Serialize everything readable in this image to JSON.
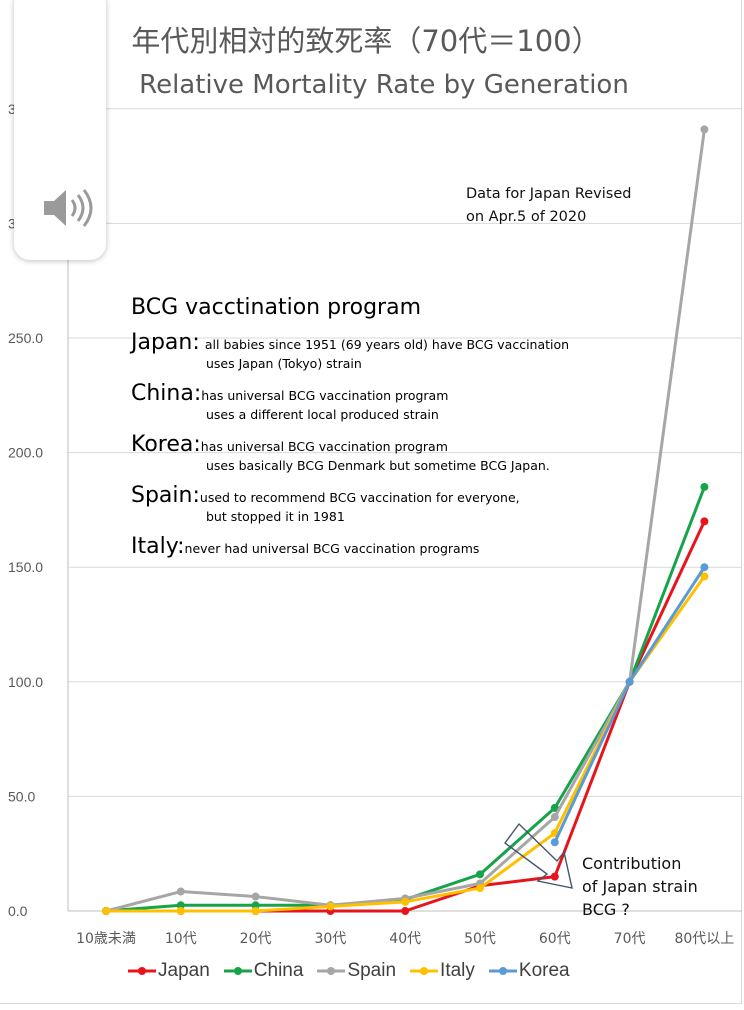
{
  "chart_data": {
    "type": "line",
    "title": "年代別相対的致死率（70代＝100）",
    "subtitle": "Relative Mortality Rate by Generation",
    "categories": [
      "10歳未満",
      "10代",
      "20代",
      "30代",
      "40代",
      "50代",
      "60代",
      "70代",
      "80代以上"
    ],
    "y_tick_labels": [
      "0.0",
      "50.0",
      "100.0",
      "150.0",
      "200.0",
      "250.0"
    ],
    "ylim": [
      0,
      350
    ],
    "grid": true,
    "legend_position": "bottom",
    "series": [
      {
        "name": "Japan",
        "color": "#e8141c",
        "values": [
          0,
          0,
          0,
          0,
          0,
          11,
          15,
          100,
          170
        ]
      },
      {
        "name": "China",
        "color": "#16a34a",
        "values": [
          0,
          2.5,
          2.5,
          2.5,
          5,
          16,
          45,
          100,
          185
        ]
      },
      {
        "name": "Spain",
        "color": "#a6a6a6",
        "values": [
          0,
          8.5,
          6.3,
          2.5,
          5.5,
          12,
          41,
          100,
          341
        ]
      },
      {
        "name": "Italy",
        "color": "#ffc000",
        "values": [
          0,
          0,
          0,
          2,
          4,
          10,
          34,
          100,
          146
        ]
      },
      {
        "name": "Korea",
        "color": "#5b9bd5",
        "values": [
          null,
          null,
          null,
          null,
          null,
          null,
          30,
          100,
          150
        ]
      }
    ],
    "annotations": {
      "revised_note": [
        "Data for Japan Revised",
        "on Apr.5 of 2020"
      ],
      "bcg_heading": "BCG  vacctination program",
      "bcg_entries": [
        {
          "country": "Japan:",
          "note": "all babies since 1951 (69 years old)  have BCG vaccination",
          "line2": "uses Japan (Tokyo) strain"
        },
        {
          "country": "China:",
          "note": "has universal BCG vaccination program",
          "line2": "uses a different local produced strain"
        },
        {
          "country": "Korea:",
          "note": "has universal BCG vaccination program",
          "line2": "uses basically BCG Denmark but sometime BCG Japan."
        },
        {
          "country": "Spain:",
          "note": "used to recommend BCG vaccination for everyone,",
          "line2": "but  stopped it in 1981"
        },
        {
          "country": "Italy:",
          "note": "never had universal BCG vaccination programs",
          "line2": ""
        }
      ],
      "contribution_note": [
        "Contribution",
        "of Japan strain",
        "BCG ?"
      ]
    }
  },
  "overlay": {
    "volume_icon": "speaker-volume-icon",
    "partial_tick_glyph": "3"
  }
}
